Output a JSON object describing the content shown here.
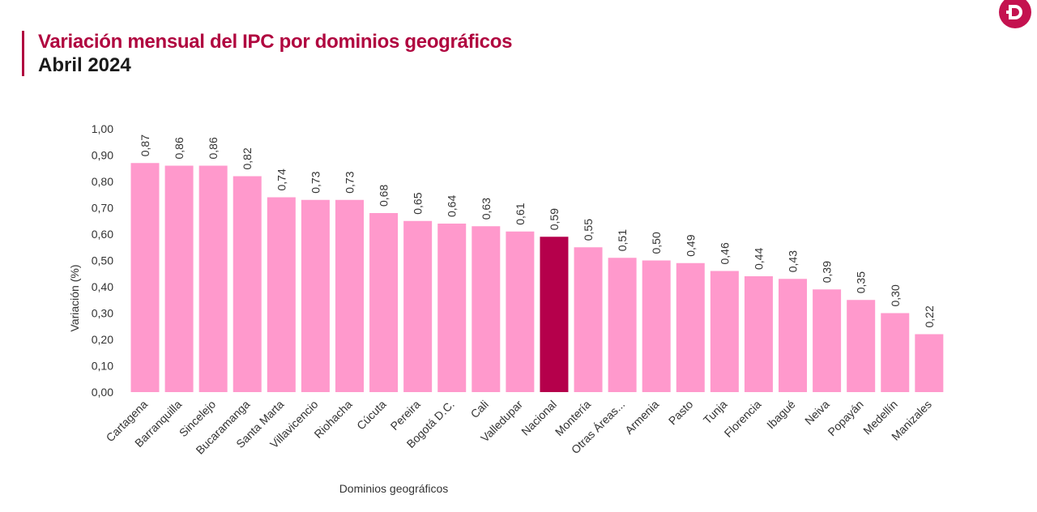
{
  "header": {
    "title": "Variación mensual del IPC por dominios geográficos",
    "subtitle": "Abril 2024"
  },
  "logo": {
    "text": "D",
    "color": "#c4124f"
  },
  "chart_data": {
    "type": "bar",
    "title": "Variación mensual del IPC por dominios geográficos",
    "subtitle": "Abril 2024",
    "xlabel": "Dominios geográficos",
    "ylabel": "Variación (%)",
    "ylim": [
      0,
      1
    ],
    "yticks": [
      "0,00",
      "0,10",
      "0,20",
      "0,30",
      "0,40",
      "0,50",
      "0,60",
      "0,70",
      "0,80",
      "0,90",
      "1,00"
    ],
    "grid": false,
    "categories": [
      "Cartagena",
      "Barranquilla",
      "Sincelejo",
      "Bucaramanga",
      "Santa Marta",
      "Villavicencio",
      "Riohacha",
      "Cúcuta",
      "Pereira",
      "Bogotá D.C.",
      "Cali",
      "Valledupar",
      "Nacional",
      "Montería",
      "Otras Áreas...",
      "Armenia",
      "Pasto",
      "Tunja",
      "Florencia",
      "Ibagué",
      "Neiva",
      "Popayán",
      "Medellín",
      "Manizales"
    ],
    "values": [
      0.87,
      0.86,
      0.86,
      0.82,
      0.74,
      0.73,
      0.73,
      0.68,
      0.65,
      0.64,
      0.63,
      0.61,
      0.59,
      0.55,
      0.51,
      0.5,
      0.49,
      0.46,
      0.44,
      0.43,
      0.39,
      0.35,
      0.3,
      0.22
    ],
    "labels": [
      "0,87",
      "0,86",
      "0,86",
      "0,82",
      "0,74",
      "0,73",
      "0,73",
      "0,68",
      "0,65",
      "0,64",
      "0,63",
      "0,61",
      "0,59",
      "0,55",
      "0,51",
      "0,50",
      "0,49",
      "0,46",
      "0,44",
      "0,43",
      "0,39",
      "0,35",
      "0,30",
      "0,22"
    ],
    "colors": {
      "bar": "#ff99cc",
      "highlight": "#b5004b"
    },
    "highlight_category": "Nacional"
  }
}
